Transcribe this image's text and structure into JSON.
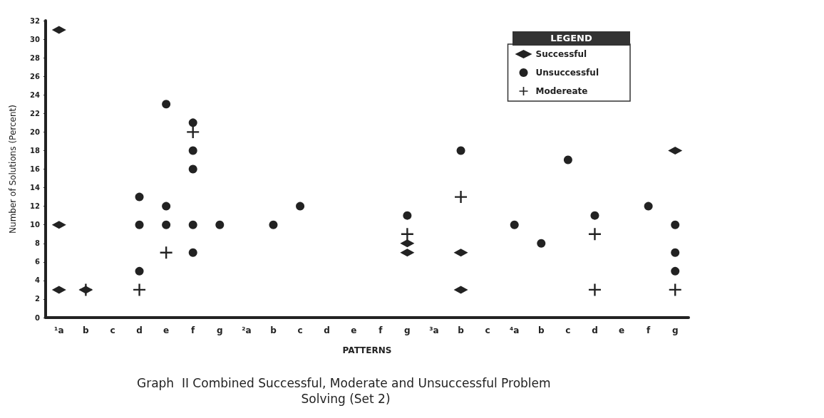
{
  "chart_data": {
    "type": "scatter",
    "title": "Graph  II Combined Successful, Moderate and Unsuccessful Problem Solving (Set 2)",
    "xlabel": "PATTERNS",
    "ylabel": "Number of Solutions (Percent)",
    "legend_title": "LEGEND",
    "legend": "top right",
    "grid": false,
    "categories": [
      "¹a",
      "b",
      "c",
      "d",
      "e",
      "f",
      "g",
      "²a",
      "b",
      "c",
      "d",
      "e",
      "f",
      "g",
      "³a",
      "b",
      "c",
      "⁴a",
      "b",
      "c",
      "d",
      "e",
      "f",
      "g"
    ],
    "ylim": [
      0,
      32
    ],
    "yticks": [
      0,
      2,
      4,
      6,
      8,
      10,
      12,
      14,
      16,
      18,
      20,
      22,
      24,
      26,
      28,
      30,
      32
    ],
    "series": [
      {
        "name": "Successful",
        "color": "#222222",
        "marker": "diamond",
        "values": [
          31,
          3,
          null,
          null,
          null,
          null,
          null,
          null,
          null,
          null,
          null,
          null,
          null,
          8,
          null,
          7,
          null,
          null,
          null,
          null,
          null,
          null,
          null,
          18
        ]
      },
      {
        "color": "#222222",
        "marker": "diamond",
        "values": [
          10,
          null,
          null,
          null,
          null,
          null,
          null,
          null,
          null,
          null,
          null,
          null,
          null,
          7,
          null,
          3,
          null,
          null,
          null,
          null,
          null,
          null,
          null,
          null
        ]
      },
      {
        "color": "#222222",
        "marker": "diamond",
        "values": [
          3,
          null,
          null,
          null,
          null,
          null,
          null,
          null,
          null,
          null,
          null,
          null,
          null,
          null,
          null,
          null,
          null,
          null,
          null,
          null,
          null,
          null,
          null,
          null
        ]
      },
      {
        "name": "Unsuccessful",
        "color": "#222222",
        "marker": "circle",
        "values": [
          null,
          null,
          null,
          13,
          23,
          21,
          10,
          null,
          10,
          12,
          null,
          null,
          null,
          11,
          null,
          18,
          null,
          10,
          8,
          17,
          11,
          null,
          12,
          10
        ]
      },
      {
        "color": "#222222",
        "marker": "circle",
        "values": [
          null,
          null,
          null,
          10,
          12,
          18,
          null,
          null,
          null,
          null,
          null,
          null,
          null,
          null,
          null,
          null,
          null,
          null,
          null,
          null,
          null,
          null,
          null,
          7
        ]
      },
      {
        "color": "#222222",
        "marker": "circle",
        "values": [
          null,
          null,
          null,
          5,
          10,
          16,
          null,
          null,
          null,
          null,
          null,
          null,
          null,
          null,
          null,
          null,
          null,
          null,
          null,
          null,
          null,
          null,
          null,
          5
        ]
      },
      {
        "color": "#222222",
        "marker": "circle",
        "values": [
          null,
          null,
          null,
          null,
          null,
          10,
          null,
          null,
          null,
          null,
          null,
          null,
          null,
          null,
          null,
          null,
          null,
          null,
          null,
          null,
          null,
          null,
          null,
          null
        ]
      },
      {
        "color": "#222222",
        "marker": "circle",
        "values": [
          null,
          null,
          null,
          null,
          null,
          7,
          null,
          null,
          null,
          null,
          null,
          null,
          null,
          null,
          null,
          null,
          null,
          null,
          null,
          null,
          null,
          null,
          null,
          null
        ]
      },
      {
        "name": "Modereate",
        "color": "#222222",
        "marker": "cross",
        "values": [
          null,
          3,
          null,
          3,
          7,
          20,
          null,
          null,
          null,
          null,
          null,
          null,
          null,
          9,
          null,
          13,
          null,
          null,
          null,
          null,
          9,
          null,
          null,
          3
        ]
      },
      {
        "color": "#222222",
        "marker": "cross",
        "values": [
          null,
          null,
          null,
          null,
          null,
          null,
          null,
          null,
          null,
          null,
          null,
          null,
          null,
          null,
          null,
          null,
          null,
          null,
          null,
          null,
          3,
          null,
          null,
          null
        ]
      }
    ]
  }
}
